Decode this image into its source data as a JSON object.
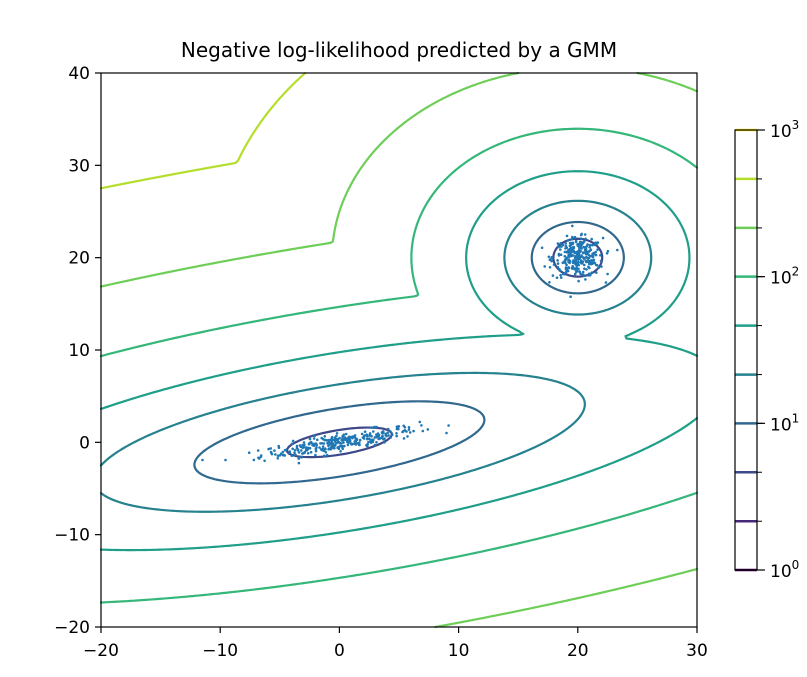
{
  "chart_data": {
    "type": "contour",
    "title": "Negative log-likelihood predicted by a GMM",
    "xlabel": "",
    "ylabel": "",
    "xlim": [
      -20,
      30
    ],
    "ylim": [
      -20,
      40
    ],
    "xticks": [
      -20,
      -10,
      0,
      10,
      20,
      30
    ],
    "yticks": [
      -20,
      -10,
      0,
      10,
      20,
      30,
      40
    ],
    "xtick_labels": [
      "−20",
      "−10",
      "0",
      "10",
      "20",
      "30"
    ],
    "ytick_labels": [
      "−20",
      "−10",
      "0",
      "10",
      "20",
      "30",
      "40"
    ],
    "grid": false,
    "components": [
      {
        "name": "stretched",
        "mean": [
          0,
          0
        ],
        "spread": "elongated along a slope of ~0.2"
      },
      {
        "name": "round",
        "mean": [
          20,
          20
        ],
        "spread": "isotropic, radius ~2"
      }
    ],
    "scatter_point_color": "#1f77b4",
    "contour_levels": [
      1.0,
      2.15,
      4.64,
      10.0,
      21.5,
      46.4,
      100.0,
      215.0,
      464.0,
      1000.0
    ],
    "level_colors": [
      "#440154",
      "#482878",
      "#3e4989",
      "#31688e",
      "#26828e",
      "#1f9e89",
      "#35b779",
      "#6ece58",
      "#b5de2b",
      "#fde725"
    ],
    "colorbar": {
      "scale": "log",
      "range": [
        1,
        1000
      ],
      "tick_base": "10",
      "tick_exponents": [
        "0",
        "1",
        "2",
        "3"
      ]
    }
  }
}
